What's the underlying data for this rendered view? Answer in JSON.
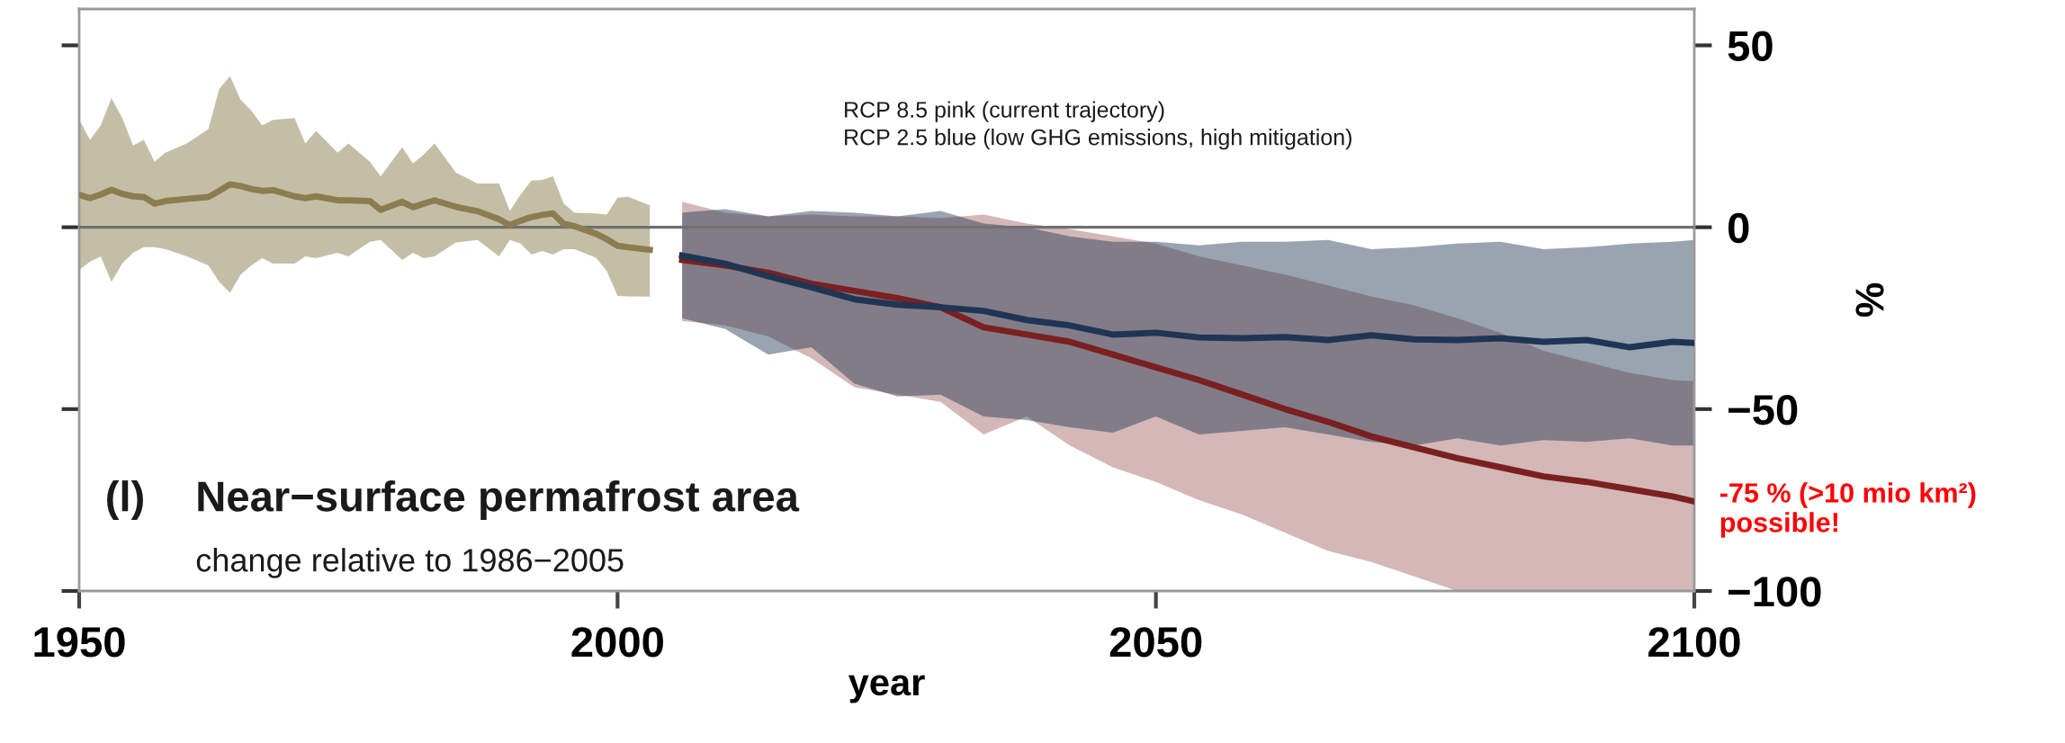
{
  "chart_data": {
    "type": "line",
    "title": "Near−surface permafrost area",
    "subtitle": "change relative to 1986−2005",
    "xlabel": "year",
    "ylabel": "%",
    "annotations": [
      "(l)",
      "RCP 8.5 pink (current trajectory)\nRCP 2.5 blue (low GHG emissions, high mitigation)",
      {
        "text": "-75 % (>10 mio km²)\npossible!",
        "x": 2100,
        "y": -75
      }
    ],
    "xlim": [
      1950,
      2100
    ],
    "ylim": [
      -100,
      60
    ],
    "xticks": [
      1950,
      2000,
      2050,
      2100
    ],
    "yticks": [
      {
        "value": -100,
        "label": "−100"
      },
      {
        "value": -50,
        "label": "−50"
      },
      0,
      50
    ],
    "ref_lines": [
      {
        "axis": "y",
        "value": 0,
        "color": "#707070"
      }
    ],
    "marker": "none",
    "line_style": "solid",
    "series": [
      {
        "color": "#8b7d50",
        "x": [
          1950,
          1951,
          1952,
          1953,
          1954,
          1955,
          1956,
          1957,
          1958,
          1960,
          1962,
          1963,
          1964,
          1965,
          1966,
          1967,
          1968,
          1970,
          1971,
          1972,
          1974,
          1975,
          1977,
          1978,
          1980,
          1981,
          1982,
          1983,
          1985,
          1987,
          1989,
          1990,
          1991,
          1992,
          1993,
          1994,
          1995,
          1996,
          1998,
          1999,
          2000,
          2001,
          2003
        ],
        "values": [
          8.9,
          8,
          9,
          10.3,
          9.2,
          8.5,
          8.3,
          6.5,
          7.2,
          7.8,
          8.3,
          10,
          11.8,
          11.3,
          10.5,
          10,
          10.2,
          8.5,
          8,
          8.5,
          7.4,
          7.4,
          7.2,
          4.8,
          7,
          5.5,
          6.5,
          7.4,
          5.6,
          4.4,
          2.2,
          0.6,
          1.8,
          2.8,
          3.4,
          3.8,
          0.9,
          0.3,
          -1.8,
          -3.3,
          -5.1,
          -5.5,
          -6.2
        ],
        "upper": [
          29.6,
          24,
          28,
          35.5,
          30,
          22.5,
          24,
          18,
          20.5,
          23,
          27,
          38,
          41.5,
          35,
          32,
          28,
          29.5,
          30,
          23,
          26.5,
          20.5,
          23,
          18,
          14,
          22,
          17.5,
          20,
          23,
          15,
          12,
          12,
          4.5,
          9,
          12.8,
          13,
          14,
          6.5,
          4,
          3.8,
          3.5,
          8.1,
          8.4,
          6
        ],
        "lower": [
          -11.7,
          -9.5,
          -8,
          -15,
          -10,
          -7,
          -5.5,
          -5.5,
          -6,
          -8,
          -10.5,
          -15,
          -18,
          -13,
          -10.5,
          -8.5,
          -10,
          -10,
          -8,
          -8.5,
          -7,
          -8,
          -4,
          -3.5,
          -9,
          -7,
          -8.5,
          -8,
          -4.2,
          -3.5,
          -8,
          -3.5,
          -4.5,
          -7.5,
          -6.5,
          -7.5,
          -6,
          -6,
          -8.4,
          -12,
          -18.9,
          -19,
          -19.1
        ]
      },
      {
        "color": "#7a2020",
        "x": [
          2006,
          2010,
          2014,
          2018,
          2022,
          2026,
          2030,
          2034,
          2038,
          2042,
          2046,
          2050,
          2054,
          2058,
          2062,
          2066,
          2070,
          2074,
          2078,
          2082,
          2086,
          2090,
          2094,
          2098,
          2100
        ],
        "values": [
          -9,
          -10.5,
          -12.5,
          -15.5,
          -17.5,
          -19.5,
          -22,
          -27.5,
          -29.5,
          -31.5,
          -35,
          -38.5,
          -42,
          -46,
          -50,
          -53.5,
          -57.5,
          -60.5,
          -63.5,
          -66,
          -68.5,
          -70,
          -72,
          -74,
          -75.4
        ],
        "upper": [
          7,
          4,
          3,
          3.5,
          3,
          3,
          2.5,
          3.5,
          1,
          -0.5,
          -2.5,
          -4.5,
          -8,
          -10.5,
          -13,
          -16,
          -19,
          -21.5,
          -25,
          -29,
          -34,
          -37,
          -40,
          -42,
          -42.3
        ],
        "lower": [
          -25.8,
          -27,
          -30,
          -36,
          -44,
          -46,
          -48,
          -57,
          -52,
          -60,
          -66,
          -70,
          -75,
          -79,
          -84,
          -89,
          -92,
          -96,
          -100,
          -100,
          -100,
          -100,
          -100,
          -100,
          -100
        ]
      },
      {
        "color": "#1f3553",
        "x": [
          2006,
          2010,
          2014,
          2018,
          2022,
          2026,
          2030,
          2034,
          2038,
          2042,
          2046,
          2050,
          2054,
          2058,
          2062,
          2066,
          2070,
          2074,
          2078,
          2082,
          2086,
          2090,
          2094,
          2098,
          2100
        ],
        "values": [
          -7.8,
          -10,
          -13.5,
          -16.5,
          -19.8,
          -21.3,
          -22,
          -23,
          -25.5,
          -27,
          -29.5,
          -29,
          -30.3,
          -30.5,
          -30.2,
          -31,
          -29.7,
          -30.8,
          -31,
          -30.5,
          -31.5,
          -31,
          -33,
          -31.5,
          -31.8
        ],
        "upper": [
          4,
          5,
          3,
          4.5,
          4,
          3,
          4.5,
          1,
          0,
          -2.5,
          -4,
          -4,
          -5,
          -4,
          -4,
          -3.5,
          -6,
          -5.5,
          -4.5,
          -4,
          -6,
          -5.5,
          -4.5,
          -4,
          -3.5
        ],
        "lower": [
          -25,
          -28,
          -35,
          -33,
          -43,
          -46.5,
          -46,
          -52,
          -53,
          -55,
          -56.5,
          -52,
          -57,
          -56,
          -55,
          -57,
          -59,
          -60,
          -58,
          -60,
          -58.5,
          -59,
          -58,
          -60,
          -60
        ]
      }
    ]
  }
}
